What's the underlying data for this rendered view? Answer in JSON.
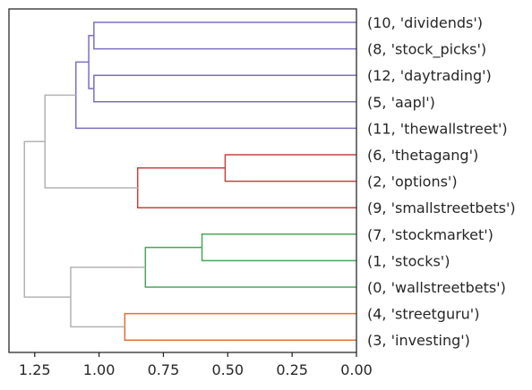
{
  "chart_data": {
    "type": "dendrogram",
    "orientation": "left",
    "title": "",
    "xlabel": "",
    "ylabel": "",
    "xlim": [
      1.35,
      0.0
    ],
    "x_ticks": [
      1.25,
      1.0,
      0.75,
      0.5,
      0.25,
      0.0
    ],
    "x_tick_labels": [
      "1.25",
      "1.00",
      "0.75",
      "0.50",
      "0.25",
      "0.00"
    ],
    "grid": false,
    "leaves": [
      "(10, 'dividends')",
      "(8, 'stock_picks')",
      "(12, 'daytrading')",
      "(5, 'aapl')",
      "(11, 'thewallstreet')",
      "(6, 'thetagang')",
      "(2, 'options')",
      "(9, 'smallstreetbets')",
      "(7, 'stockmarket')",
      "(1, 'stocks')",
      "(0, 'wallstreetbets')",
      "(4, 'streetguru')",
      "(3, 'investing')"
    ],
    "colors": {
      "purple": "#7b6fc2",
      "red": "#cc4040",
      "green": "#4aa65c",
      "orange": "#e0703a",
      "gray": "#b3b3b3"
    },
    "merges": [
      {
        "id": "m1",
        "children": [
          0,
          1
        ],
        "height": 1.02,
        "color": "purple"
      },
      {
        "id": "m2",
        "children": [
          2,
          3
        ],
        "height": 1.02,
        "color": "purple"
      },
      {
        "id": "m3",
        "children": [
          "m1",
          "m2"
        ],
        "height": 1.04,
        "color": "purple"
      },
      {
        "id": "m4",
        "children": [
          "m3",
          4
        ],
        "height": 1.09,
        "color": "purple"
      },
      {
        "id": "m5",
        "children": [
          5,
          6
        ],
        "height": 0.51,
        "color": "red"
      },
      {
        "id": "m6",
        "children": [
          "m5",
          7
        ],
        "height": 0.85,
        "color": "red"
      },
      {
        "id": "m7",
        "children": [
          8,
          9
        ],
        "height": 0.6,
        "color": "green"
      },
      {
        "id": "m8",
        "children": [
          "m7",
          10
        ],
        "height": 0.82,
        "color": "green"
      },
      {
        "id": "m9",
        "children": [
          11,
          12
        ],
        "height": 0.9,
        "color": "orange"
      },
      {
        "id": "m10",
        "children": [
          "m4",
          "m6"
        ],
        "height": 1.21,
        "color": "gray"
      },
      {
        "id": "m11",
        "children": [
          "m8",
          "m9"
        ],
        "height": 1.11,
        "color": "gray"
      },
      {
        "id": "m12",
        "children": [
          "m10",
          "m11"
        ],
        "height": 1.29,
        "color": "gray"
      }
    ]
  }
}
